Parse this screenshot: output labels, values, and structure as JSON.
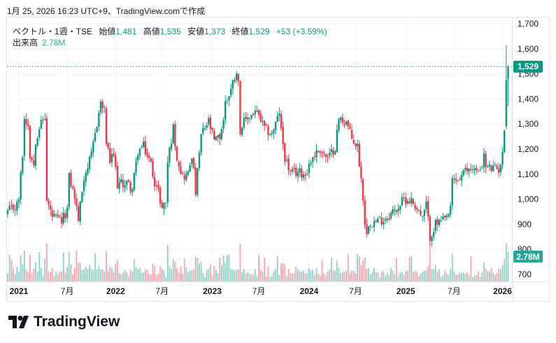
{
  "header": {
    "title": "1月 25, 2026 16:23 UTC+9、TradingView.comで作成"
  },
  "legend": {
    "symbol": "ベクトル・1週・TSE",
    "open_label": "始値",
    "open": "1,481",
    "high_label": "高値",
    "high": "1,535",
    "low_label": "安値",
    "low": "1,373",
    "close_label": "終値",
    "close": "1,529",
    "change": "+53 (+3.59%)",
    "volume_label": "出来高",
    "volume": "2.78M"
  },
  "colors": {
    "up": "#089981",
    "down": "#f23645",
    "volume_badge": "#26a69a",
    "grid": "#f0f3fa"
  },
  "logo": {
    "text": "TradingView"
  },
  "chart_data": {
    "type": "candlestick",
    "interval": "1 week",
    "ylim": [
      680,
      1720
    ],
    "y_ticks": [
      "1,700",
      "1,600",
      "1,500",
      "1,400",
      "1,300",
      "1,200",
      "1,100",
      "1,000",
      "900",
      "800",
      "700"
    ],
    "y_tick_values": [
      1700,
      1600,
      1500,
      1400,
      1300,
      1200,
      1100,
      1000,
      900,
      800,
      700
    ],
    "x_ticks": [
      {
        "label": "2021",
        "week": 6,
        "year": true
      },
      {
        "label": "7月",
        "week": 32,
        "year": false
      },
      {
        "label": "2022",
        "week": 58,
        "year": true
      },
      {
        "label": "7月",
        "week": 83,
        "year": false
      },
      {
        "label": "2023",
        "week": 110,
        "year": true
      },
      {
        "label": "7月",
        "week": 135,
        "year": false
      },
      {
        "label": "2024",
        "week": 162,
        "year": true
      },
      {
        "label": "7月",
        "week": 187,
        "year": false
      },
      {
        "label": "2025",
        "week": 214,
        "year": true
      },
      {
        "label": "7月",
        "week": 240,
        "year": false
      },
      {
        "label": "2026",
        "week": 266,
        "year": true
      }
    ],
    "week_count": 270,
    "close_path": [
      [
        0,
        950
      ],
      [
        5,
        975
      ],
      [
        6,
        1005
      ],
      [
        8,
        1180
      ],
      [
        9,
        1320
      ],
      [
        11,
        1300
      ],
      [
        12,
        1180
      ],
      [
        14,
        1140
      ],
      [
        15,
        1236
      ],
      [
        17,
        1290
      ],
      [
        20,
        1328
      ],
      [
        21,
        993
      ],
      [
        24,
        930
      ],
      [
        29,
        910
      ],
      [
        32,
        960
      ],
      [
        33,
        1088
      ],
      [
        36,
        1010
      ],
      [
        38,
        920
      ],
      [
        41,
        1090
      ],
      [
        45,
        1170
      ],
      [
        47,
        1264
      ],
      [
        50,
        1385
      ],
      [
        52,
        1350
      ],
      [
        53,
        1230
      ],
      [
        55,
        1150
      ],
      [
        57,
        1175
      ],
      [
        59,
        1060
      ],
      [
        64,
        1065
      ],
      [
        67,
        1040
      ],
      [
        70,
        1190
      ],
      [
        73,
        1210
      ],
      [
        77,
        1140
      ],
      [
        79,
        1070
      ],
      [
        81,
        1030
      ],
      [
        83,
        965
      ],
      [
        85,
        990
      ],
      [
        86,
        1150
      ],
      [
        89,
        1284
      ],
      [
        91,
        1170
      ],
      [
        94,
        1090
      ],
      [
        97,
        1100
      ],
      [
        99,
        1180
      ],
      [
        101,
        1030
      ],
      [
        103,
        1180
      ],
      [
        104,
        1255
      ],
      [
        108,
        1310
      ],
      [
        111,
        1230
      ],
      [
        114,
        1250
      ],
      [
        116,
        1320
      ],
      [
        117,
        1385
      ],
      [
        120,
        1440
      ],
      [
        123,
        1516
      ],
      [
        124,
        1460
      ],
      [
        125,
        1280
      ],
      [
        127,
        1305
      ],
      [
        130,
        1330
      ],
      [
        133,
        1350
      ],
      [
        135,
        1330
      ],
      [
        138,
        1280
      ],
      [
        142,
        1260
      ],
      [
        145,
        1320
      ],
      [
        146,
        1350
      ],
      [
        147,
        1270
      ],
      [
        149,
        1170
      ],
      [
        152,
        1100
      ],
      [
        156,
        1110
      ],
      [
        160,
        1100
      ],
      [
        164,
        1170
      ],
      [
        168,
        1200
      ],
      [
        172,
        1160
      ],
      [
        176,
        1210
      ],
      [
        178,
        1320
      ],
      [
        182,
        1310
      ],
      [
        185,
        1240
      ],
      [
        188,
        1210
      ],
      [
        190,
        1080
      ],
      [
        191,
        1010
      ],
      [
        192,
        910
      ],
      [
        193,
        855
      ],
      [
        194,
        910
      ],
      [
        198,
        910
      ],
      [
        203,
        925
      ],
      [
        209,
        960
      ],
      [
        213,
        1000
      ],
      [
        217,
        995
      ],
      [
        221,
        955
      ],
      [
        223,
        920
      ],
      [
        225,
        980
      ],
      [
        227,
        850
      ],
      [
        230,
        900
      ],
      [
        235,
        915
      ],
      [
        238,
        955
      ],
      [
        239,
        1077
      ],
      [
        242,
        1075
      ],
      [
        246,
        1110
      ],
      [
        250,
        1130
      ],
      [
        253,
        1100
      ],
      [
        256,
        1170
      ],
      [
        257,
        1130
      ],
      [
        261,
        1120
      ],
      [
        264,
        1120
      ],
      [
        266,
        1175
      ],
      [
        267,
        1290
      ]
    ],
    "last_candles": [
      {
        "week": 268,
        "open": 1290,
        "high": 1615,
        "low": 1280,
        "close": 1476
      },
      {
        "week": 269,
        "open": 1481,
        "high": 1535,
        "low": 1373,
        "close": 1529
      }
    ],
    "last_price": 1529,
    "last_price_label": "1,529",
    "last_volume_millions": 2.78,
    "last_volume_label": "2.78M"
  }
}
